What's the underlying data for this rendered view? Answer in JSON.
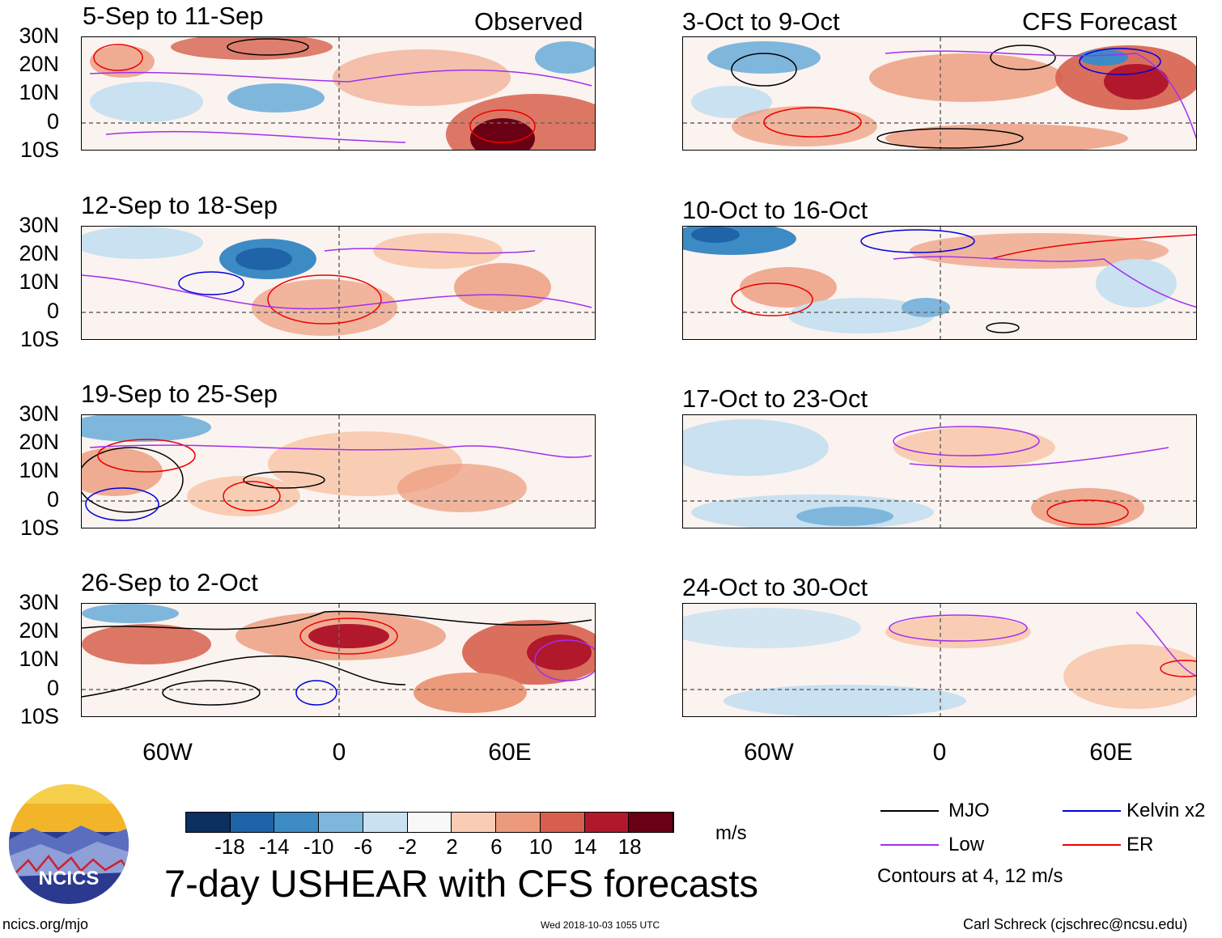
{
  "figure": {
    "title": "7-day USHEAR with CFS forecasts",
    "unit_label": "m/s",
    "column_labels": {
      "left": "Observed",
      "right": "CFS Forecast"
    },
    "latitude_ticks": [
      "30N",
      "20N",
      "10N",
      "0",
      "10S"
    ],
    "longitude_ticks": [
      "60W",
      "0",
      "60E"
    ]
  },
  "panels": [
    {
      "id": "p1",
      "period": "5-Sep to 11-Sep"
    },
    {
      "id": "p2",
      "period": "12-Sep to 18-Sep"
    },
    {
      "id": "p3",
      "period": "19-Sep to 25-Sep"
    },
    {
      "id": "p4",
      "period": "26-Sep to 2-Oct"
    },
    {
      "id": "p5",
      "period": "3-Oct to 9-Oct"
    },
    {
      "id": "p6",
      "period": "10-Oct to 16-Oct"
    },
    {
      "id": "p7",
      "period": "17-Oct to 23-Oct"
    },
    {
      "id": "p8",
      "period": "24-Oct to 30-Oct"
    }
  ],
  "colorbar": {
    "tick_labels": [
      "-18",
      "-14",
      "-10",
      "-6",
      "-2",
      "2",
      "6",
      "10",
      "14",
      "18"
    ],
    "colors": [
      "#0b2f5e",
      "#1f63a8",
      "#3d8bc4",
      "#7fb6dc",
      "#c9e1f0",
      "#f8f8f8",
      "#f8cdb4",
      "#ec9a7c",
      "#d6604d",
      "#b2182b",
      "#6a0014"
    ]
  },
  "legend": {
    "items": [
      {
        "label": "MJO",
        "color": "#000000"
      },
      {
        "label": "Kelvin x2",
        "color": "#0000dd"
      },
      {
        "label": "Low",
        "color": "#a030f0"
      },
      {
        "label": "ER",
        "color": "#ee0000"
      }
    ],
    "contour_note": "Contours at 4, 12 m/s"
  },
  "logo": {
    "text": "NCICS"
  },
  "footer": {
    "url": "ncics.org/mjo",
    "timestamp": "Wed 2018-10-03 1055 UTC",
    "credit": "Carl Schreck (cjschrec@ncsu.edu)"
  }
}
